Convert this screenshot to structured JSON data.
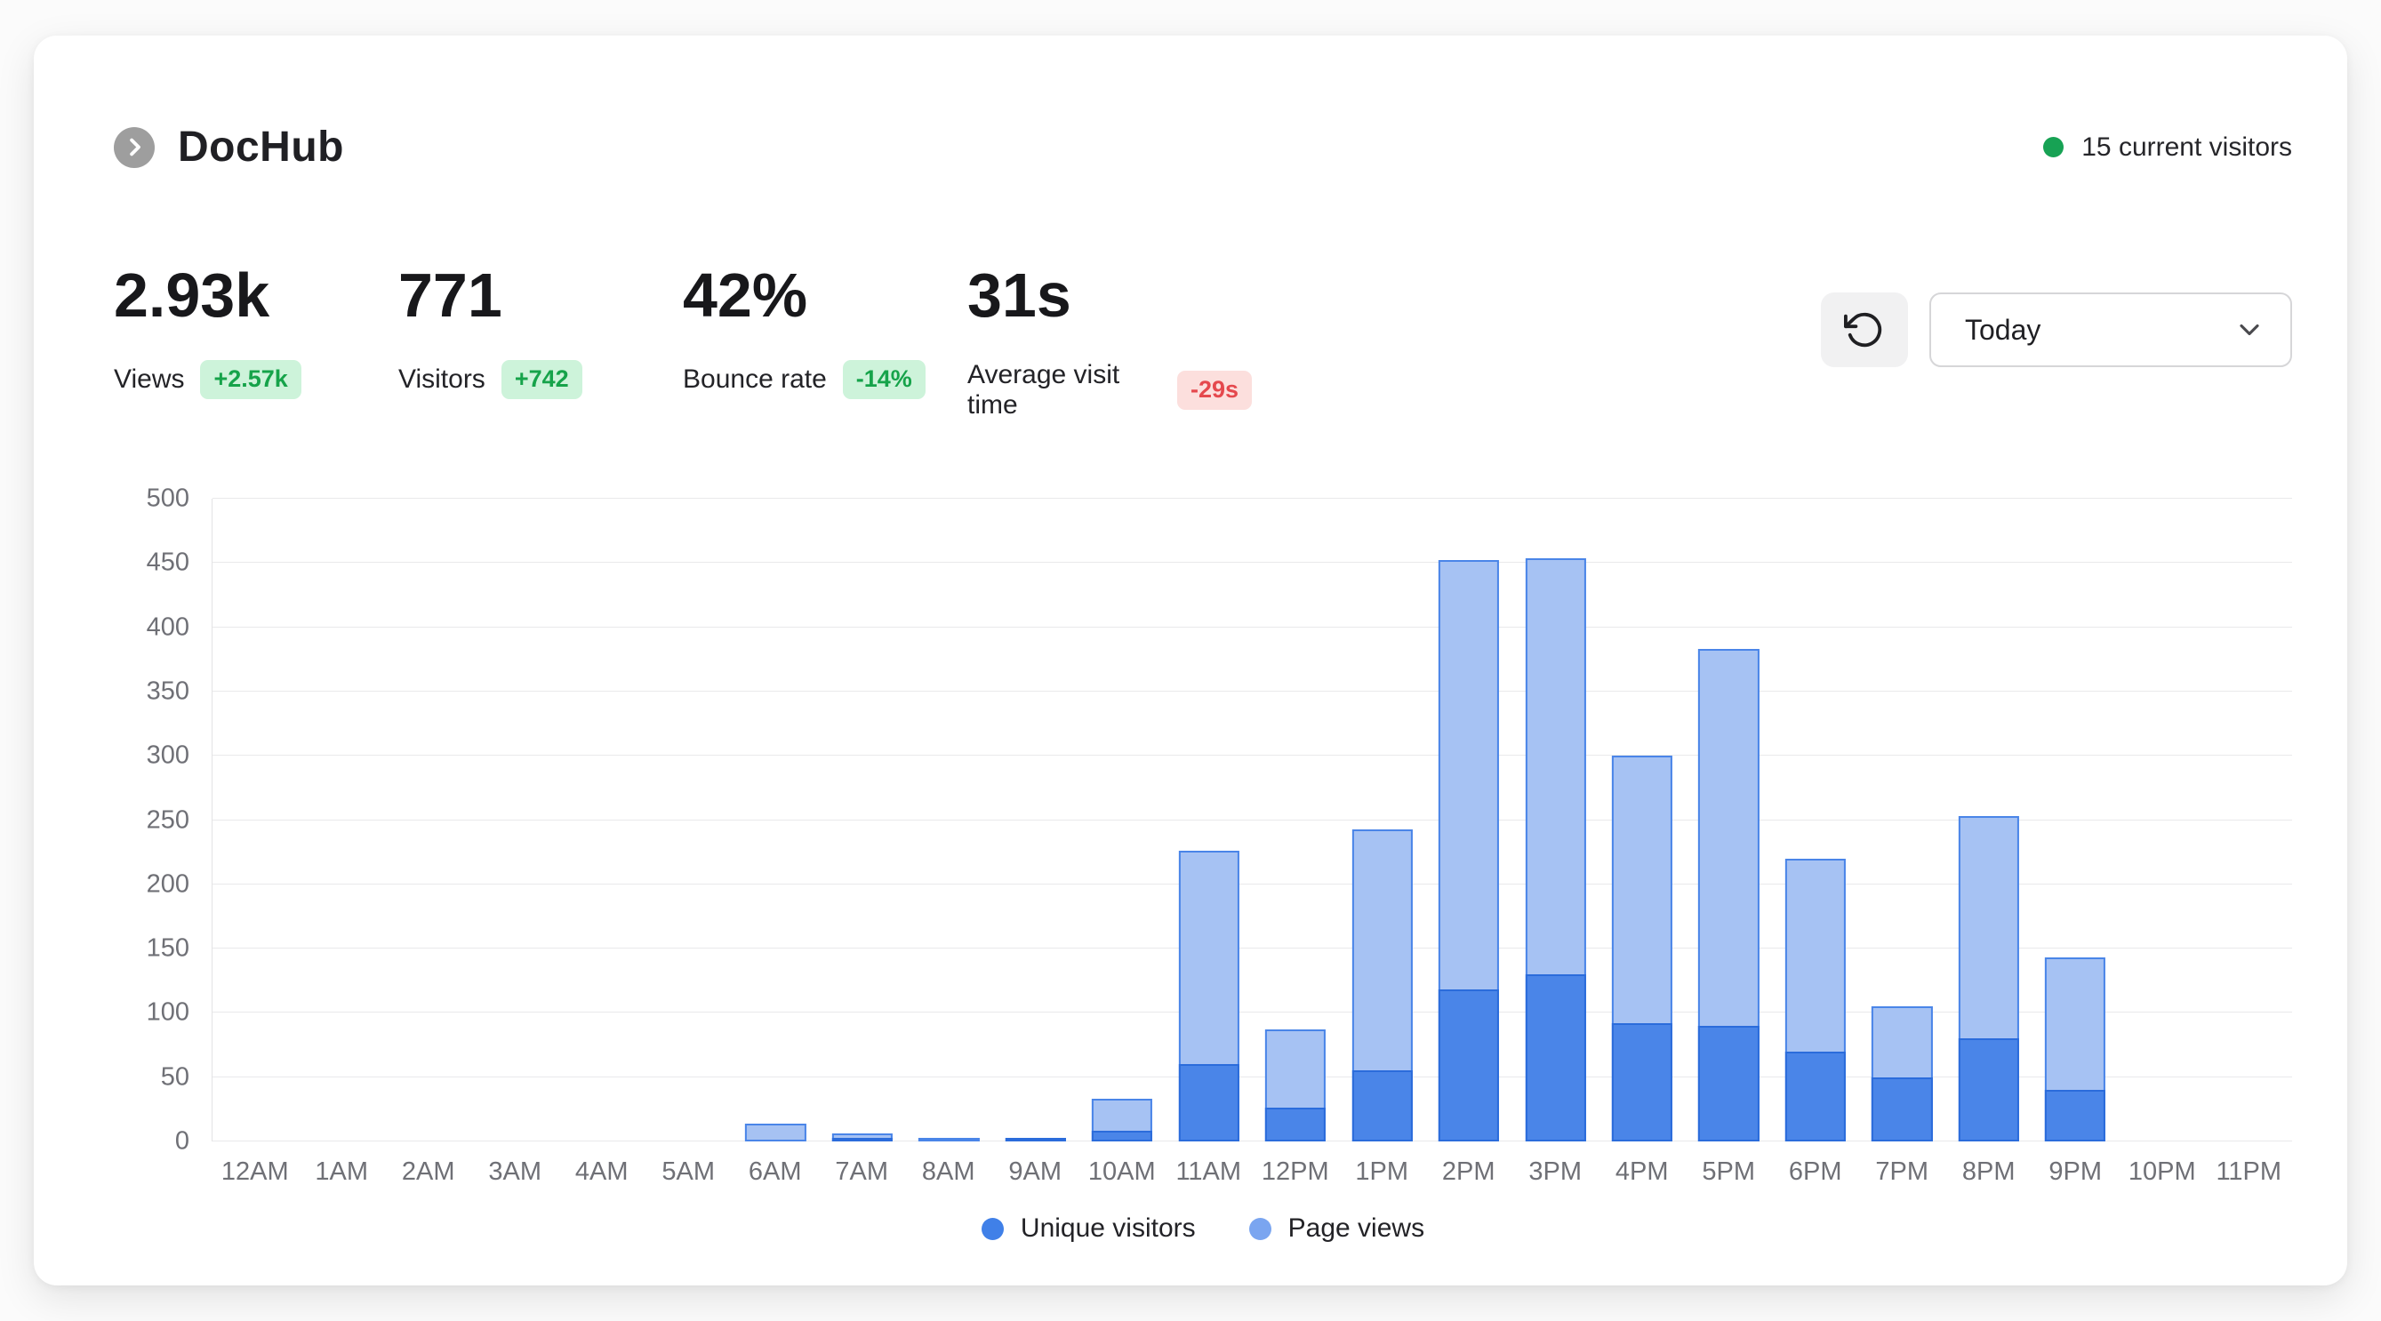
{
  "header": {
    "app_name": "DocHub",
    "visitors_indicator": {
      "label": "15 current visitors",
      "dot_color": "#17a254"
    }
  },
  "stats": [
    {
      "value": "2.93k",
      "label": "Views",
      "badge": "+2.57k",
      "badge_type": "positive"
    },
    {
      "value": "771",
      "label": "Visitors",
      "badge": "+742",
      "badge_type": "positive"
    },
    {
      "value": "42%",
      "label": "Bounce rate",
      "badge": "-14%",
      "badge_type": "positive"
    },
    {
      "value": "31s",
      "label": "Average visit time",
      "badge": "-29s",
      "badge_type": "negative"
    }
  ],
  "controls": {
    "refresh_icon": "rotate-ccw",
    "range_select": {
      "value": "Today",
      "icon": "chevron-down"
    }
  },
  "chart_data": {
    "type": "bar",
    "style": "overlayed-bars",
    "categories": [
      "12AM",
      "1AM",
      "2AM",
      "3AM",
      "4AM",
      "5AM",
      "6AM",
      "7AM",
      "8AM",
      "9AM",
      "10AM",
      "11AM",
      "12PM",
      "1PM",
      "2PM",
      "3PM",
      "4PM",
      "5PM",
      "6PM",
      "7PM",
      "8PM",
      "9PM",
      "10PM",
      "11PM"
    ],
    "series": [
      {
        "name": "Unique visitors",
        "values": [
          0,
          0,
          0,
          0,
          0,
          0,
          0,
          2,
          0,
          3,
          8,
          60,
          26,
          55,
          118,
          130,
          92,
          90,
          70,
          50,
          80,
          40,
          0,
          0
        ],
        "fill": "#4a85e8",
        "stroke": "#2b6cdb",
        "legend_color": "#4080e8"
      },
      {
        "name": "Page views",
        "values": [
          0,
          0,
          0,
          0,
          0,
          0,
          14,
          6,
          2,
          3,
          33,
          226,
          87,
          243,
          452,
          454,
          300,
          383,
          220,
          105,
          253,
          143,
          0,
          0
        ],
        "fill": "#a6c2f3",
        "stroke": "#4a85e8",
        "legend_color": "#7aa5f0"
      }
    ],
    "ylim": [
      0,
      500
    ],
    "yticks": [
      0,
      50,
      100,
      150,
      200,
      250,
      300,
      350,
      400,
      450,
      500
    ],
    "grid": true,
    "legend_position": "bottom",
    "xlabel": "",
    "ylabel": ""
  },
  "colors": {
    "positive_badge_bg": "#cdf3da",
    "positive_badge_text": "#16a34a",
    "negative_badge_bg": "#fcdfdd",
    "negative_badge_text": "#e5484d",
    "current_visitors_dot": "#17a254",
    "grid": "#e9e9eb",
    "axis_text": "#6f7076"
  }
}
